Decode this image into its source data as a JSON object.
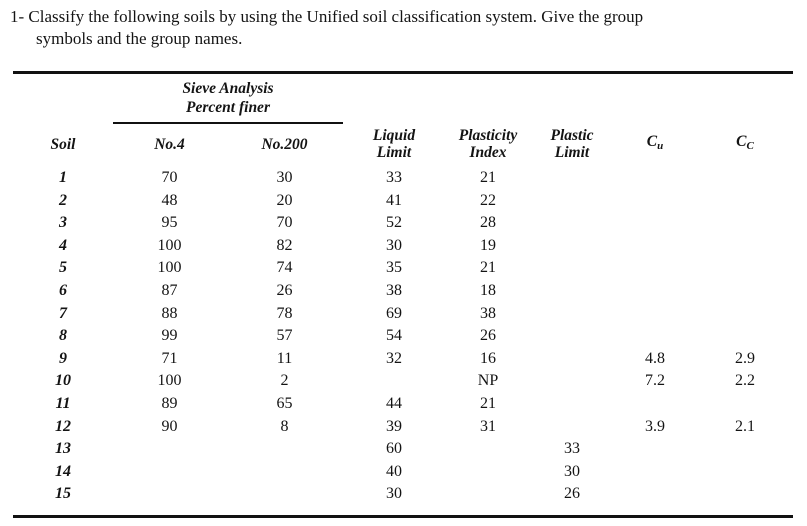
{
  "problem": {
    "line1": "1- Classify the following soils by using the Unified soil classification system. Give the group",
    "line2": "symbols and the group names."
  },
  "table": {
    "sieve_header": {
      "line1": "Sieve Analysis",
      "line2": "Percent finer"
    },
    "columns": {
      "soil": "Soil",
      "no4": "No.4",
      "no200": "No.200",
      "liquid_limit": [
        "Liquid",
        "Limit"
      ],
      "plasticity_index": [
        "Plasticity",
        "Index"
      ],
      "plastic_limit": [
        "Plastic",
        "Limit"
      ],
      "cu": {
        "base": "C",
        "sub": "u"
      },
      "cc": {
        "base": "C",
        "sub": "C"
      }
    },
    "rows": [
      {
        "soil": "1",
        "no4": "70",
        "no200": "30",
        "ll": "33",
        "pi": "21",
        "pl": "",
        "cu": "",
        "cc": ""
      },
      {
        "soil": "2",
        "no4": "48",
        "no200": "20",
        "ll": "41",
        "pi": "22",
        "pl": "",
        "cu": "",
        "cc": ""
      },
      {
        "soil": "3",
        "no4": "95",
        "no200": "70",
        "ll": "52",
        "pi": "28",
        "pl": "",
        "cu": "",
        "cc": ""
      },
      {
        "soil": "4",
        "no4": "100",
        "no200": "82",
        "ll": "30",
        "pi": "19",
        "pl": "",
        "cu": "",
        "cc": ""
      },
      {
        "soil": "5",
        "no4": "100",
        "no200": "74",
        "ll": "35",
        "pi": "21",
        "pl": "",
        "cu": "",
        "cc": ""
      },
      {
        "soil": "6",
        "no4": "87",
        "no200": "26",
        "ll": "38",
        "pi": "18",
        "pl": "",
        "cu": "",
        "cc": ""
      },
      {
        "soil": "7",
        "no4": "88",
        "no200": "78",
        "ll": "69",
        "pi": "38",
        "pl": "",
        "cu": "",
        "cc": ""
      },
      {
        "soil": "8",
        "no4": "99",
        "no200": "57",
        "ll": "54",
        "pi": "26",
        "pl": "",
        "cu": "",
        "cc": ""
      },
      {
        "soil": "9",
        "no4": "71",
        "no200": "11",
        "ll": "32",
        "pi": "16",
        "pl": "",
        "cu": "4.8",
        "cc": "2.9"
      },
      {
        "soil": "10",
        "no4": "100",
        "no200": "2",
        "ll": "",
        "pi": "NP",
        "pl": "",
        "cu": "7.2",
        "cc": "2.2"
      },
      {
        "soil": "11",
        "no4": "89",
        "no200": "65",
        "ll": "44",
        "pi": "21",
        "pl": "",
        "cu": "",
        "cc": ""
      },
      {
        "soil": "12",
        "no4": "90",
        "no200": "8",
        "ll": "39",
        "pi": "31",
        "pl": "",
        "cu": "3.9",
        "cc": "2.1"
      },
      {
        "soil": "13",
        "no4": "",
        "no200": "",
        "ll": "60",
        "pi": "",
        "pl": "33",
        "cu": "",
        "cc": ""
      },
      {
        "soil": "14",
        "no4": "",
        "no200": "",
        "ll": "40",
        "pi": "",
        "pl": "30",
        "cu": "",
        "cc": ""
      },
      {
        "soil": "15",
        "no4": "",
        "no200": "",
        "ll": "30",
        "pi": "",
        "pl": "26",
        "cu": "",
        "cc": ""
      }
    ]
  }
}
